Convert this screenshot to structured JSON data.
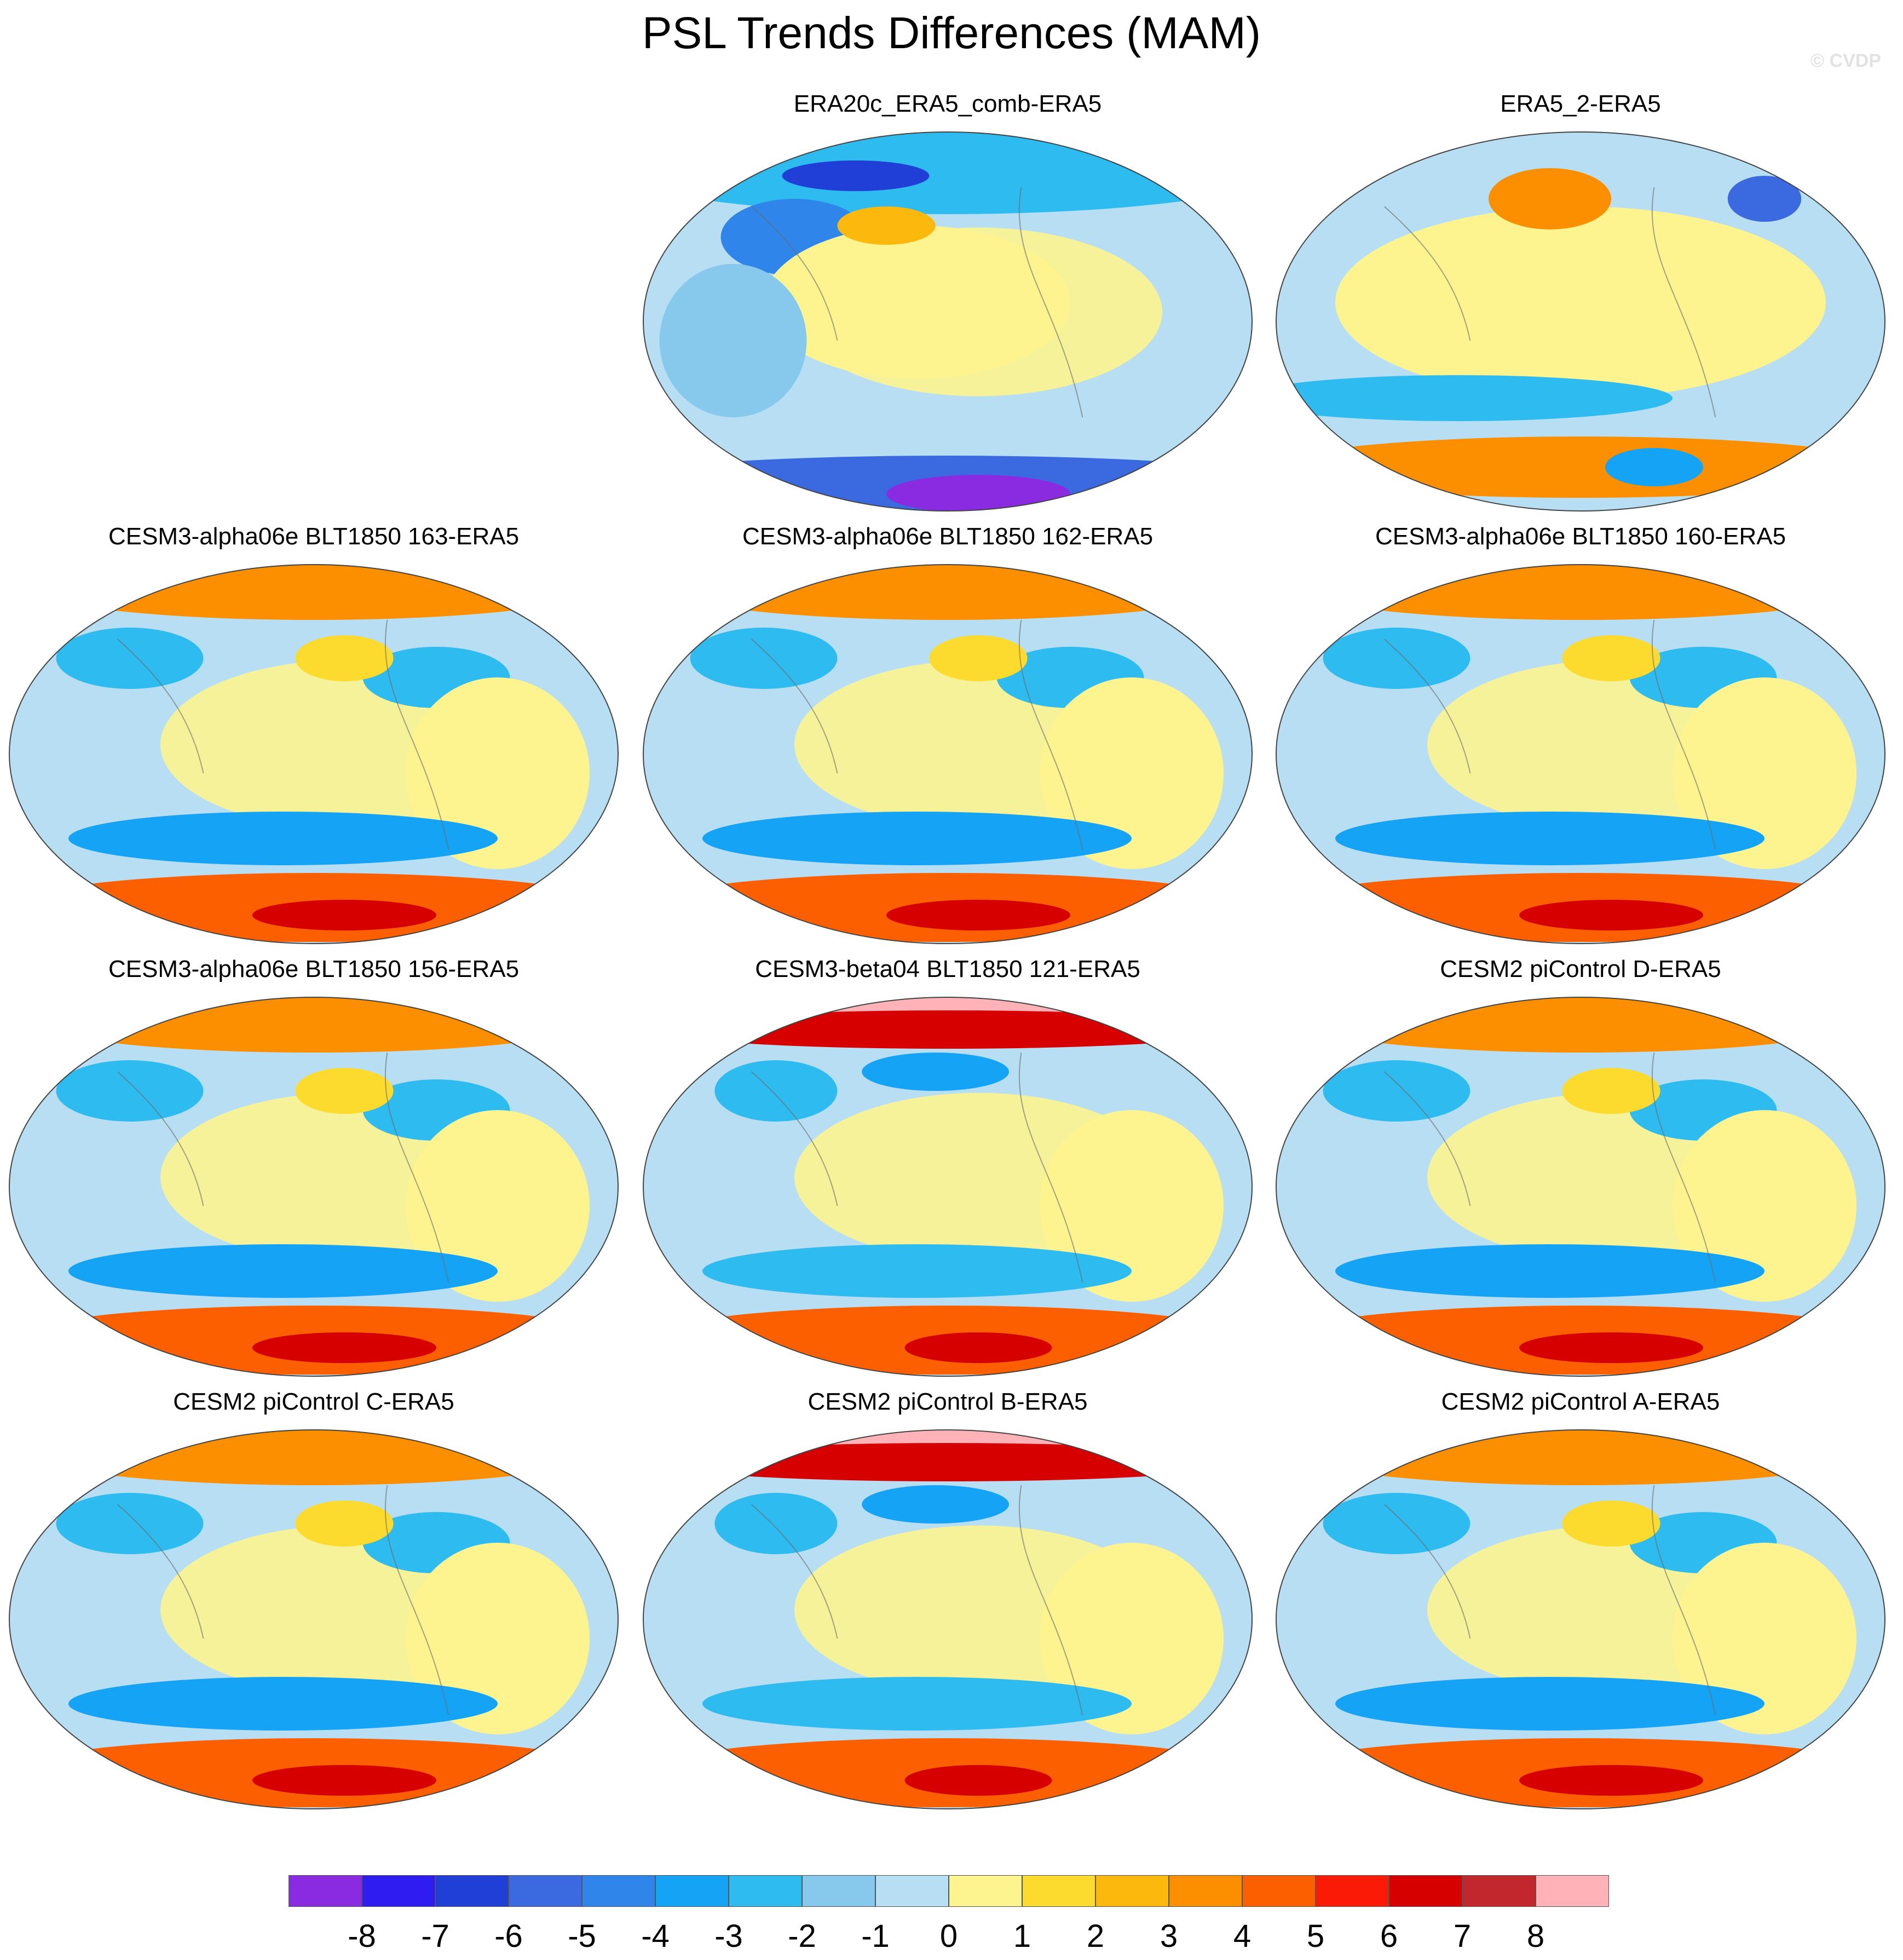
{
  "title": "PSL Trends Differences (MAM)",
  "watermark": "© CVDP",
  "colorbar": {
    "colors": [
      "#8a2be2",
      "#2f1cf0",
      "#1f3fd6",
      "#3b6ae0",
      "#2f85ea",
      "#14a3f5",
      "#2dbbf0",
      "#87c8ed",
      "#b7def3",
      "#fdf48f",
      "#fddb2e",
      "#fcb80c",
      "#fb8f00",
      "#fb5f00",
      "#fb1a05",
      "#d70000",
      "#c1272d",
      "#ffb3b8"
    ],
    "labels": [
      "-8",
      "-7",
      "-6",
      "-5",
      "-4",
      "-3",
      "-2",
      "-1",
      "0",
      "1",
      "2",
      "3",
      "4",
      "5",
      "6",
      "7",
      "8"
    ]
  },
  "panels": [
    {
      "row": 0,
      "col": 1,
      "title": "ERA20c_ERA5_comb-ERA5",
      "variant": "a"
    },
    {
      "row": 0,
      "col": 2,
      "title": "ERA5_2-ERA5",
      "variant": "b"
    },
    {
      "row": 1,
      "col": 0,
      "title": "CESM3-alpha06e BLT1850 163-ERA5",
      "variant": "c"
    },
    {
      "row": 1,
      "col": 1,
      "title": "CESM3-alpha06e BLT1850 162-ERA5",
      "variant": "c"
    },
    {
      "row": 1,
      "col": 2,
      "title": "CESM3-alpha06e BLT1850 160-ERA5",
      "variant": "c"
    },
    {
      "row": 2,
      "col": 0,
      "title": "CESM3-alpha06e BLT1850 156-ERA5",
      "variant": "c"
    },
    {
      "row": 2,
      "col": 1,
      "title": "CESM3-beta04 BLT1850 121-ERA5",
      "variant": "d"
    },
    {
      "row": 2,
      "col": 2,
      "title": "CESM2 piControl D-ERA5",
      "variant": "c"
    },
    {
      "row": 3,
      "col": 0,
      "title": "CESM2 piControl C-ERA5",
      "variant": "c"
    },
    {
      "row": 3,
      "col": 1,
      "title": "CESM2 piControl B-ERA5",
      "variant": "d"
    },
    {
      "row": 3,
      "col": 2,
      "title": "CESM2 piControl A-ERA5",
      "variant": "c"
    }
  ]
}
